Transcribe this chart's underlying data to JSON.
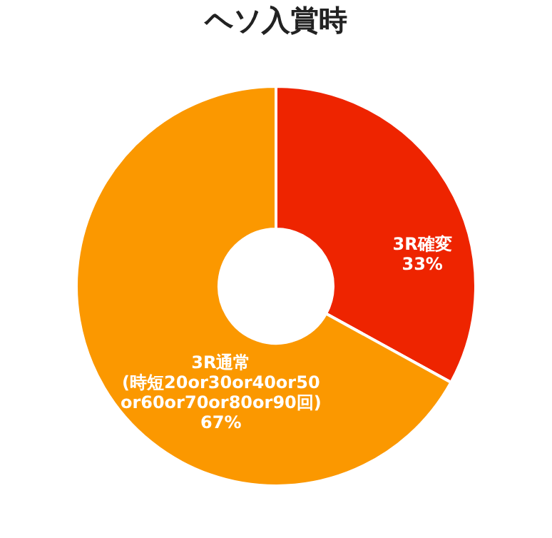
{
  "chart_data": {
    "type": "donut",
    "title": "ヘソ入賞時",
    "categories": [
      "3R確変",
      "3R通常\n(時短20or30or40or50\nor60or70or80or90回)"
    ],
    "values": [
      33,
      67
    ],
    "value_labels": [
      "33%",
      "67%"
    ],
    "colors": [
      "#ee2400",
      "#fb9800"
    ],
    "legend": false
  }
}
